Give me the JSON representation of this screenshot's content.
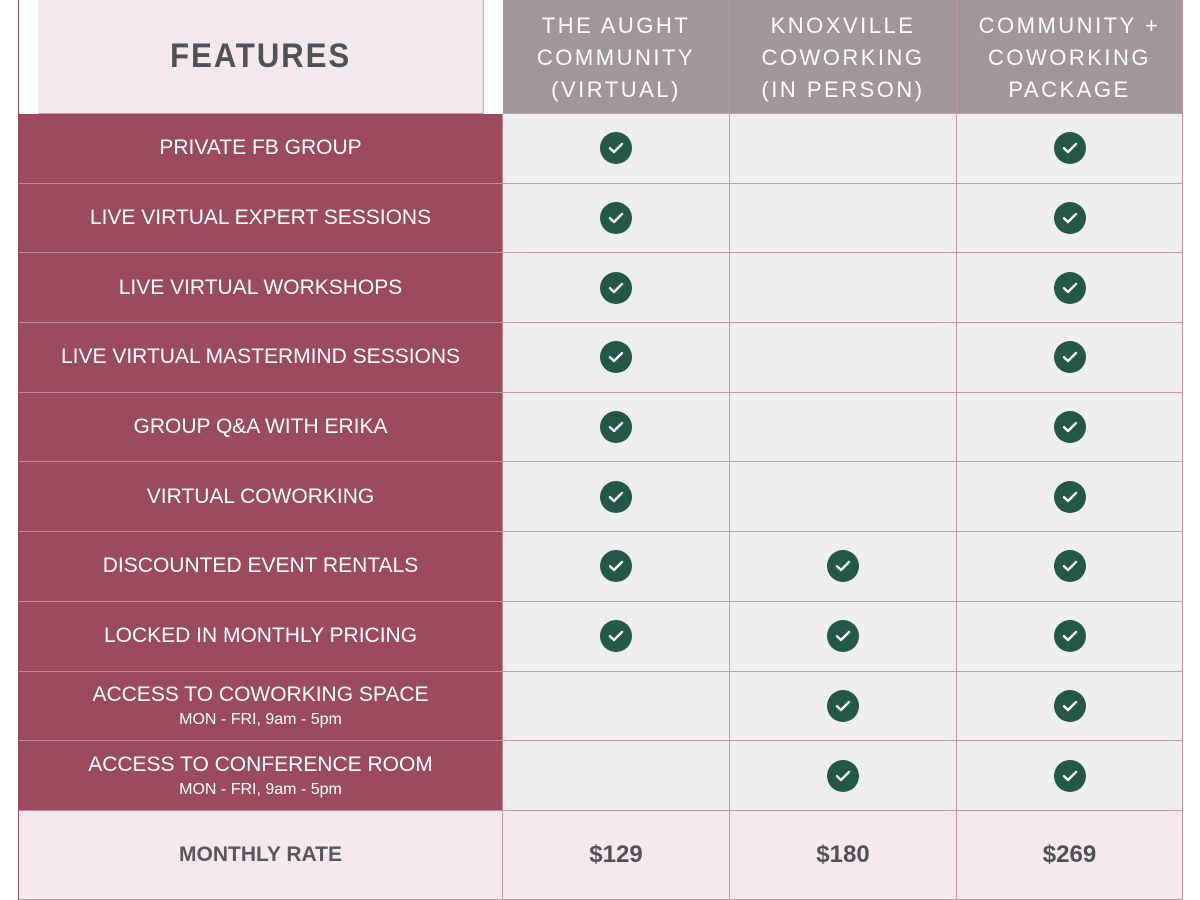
{
  "header": {
    "features_label": "FEATURES",
    "columns": [
      {
        "lines": [
          "THE AUGHT",
          "COMMUNITY",
          "(VIRTUAL)"
        ]
      },
      {
        "lines": [
          "KNOXVILLE",
          "COWORKING",
          "(IN PERSON)"
        ]
      },
      {
        "lines": [
          "COMMUNITY +",
          "COWORKING",
          "PACKAGE"
        ]
      }
    ]
  },
  "rows": [
    {
      "label": "PRIVATE FB GROUP",
      "sub": "",
      "checks": [
        true,
        false,
        true
      ]
    },
    {
      "label": "LIVE VIRTUAL EXPERT SESSIONS",
      "sub": "",
      "checks": [
        true,
        false,
        true
      ]
    },
    {
      "label": "LIVE VIRTUAL WORKSHOPS",
      "sub": "",
      "checks": [
        true,
        false,
        true
      ]
    },
    {
      "label": "LIVE VIRTUAL MASTERMIND SESSIONS",
      "sub": "",
      "checks": [
        true,
        false,
        true
      ]
    },
    {
      "label": "GROUP Q&A WITH ERIKA",
      "sub": "",
      "checks": [
        true,
        false,
        true
      ]
    },
    {
      "label": "VIRTUAL COWORKING",
      "sub": "",
      "checks": [
        true,
        false,
        true
      ]
    },
    {
      "label": "DISCOUNTED EVENT RENTALS",
      "sub": "",
      "checks": [
        true,
        true,
        true
      ]
    },
    {
      "label": "LOCKED IN MONTHLY PRICING",
      "sub": "",
      "checks": [
        true,
        true,
        true
      ]
    },
    {
      "label": "ACCESS TO COWORKING SPACE",
      "sub": "MON - FRI, 9am - 5pm",
      "checks": [
        false,
        true,
        true
      ]
    },
    {
      "label": "ACCESS TO CONFERENCE ROOM",
      "sub": "MON - FRI, 9am - 5pm",
      "checks": [
        false,
        true,
        true
      ]
    }
  ],
  "footer": {
    "label": "MONTHLY RATE",
    "rates": [
      "$129",
      "$180",
      "$269"
    ]
  },
  "icons": {
    "check": "check-circle-icon"
  },
  "colors": {
    "feature_bg": "#9c4a5e",
    "header_bg": "#a3969b",
    "check_bg": "#235748",
    "light_pink": "#f6e9ee",
    "cell_bg": "#efefef"
  }
}
